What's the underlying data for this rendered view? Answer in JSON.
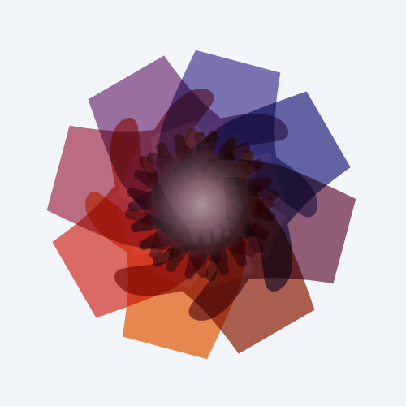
{
  "artwork": {
    "icon": "circle-of-hands-logo",
    "background_color": "#f2f6fa",
    "center_glow_color": "#ffffff",
    "hands": [
      {
        "name": "hand-violet",
        "color": "#5d50a0"
      },
      {
        "name": "hand-indigo",
        "color": "#3c3c8c"
      },
      {
        "name": "hand-plum",
        "color": "#7a3552"
      },
      {
        "name": "hand-rust",
        "color": "#9e341e"
      },
      {
        "name": "hand-orange",
        "color": "#f06c20"
      },
      {
        "name": "hand-red",
        "color": "#e0453c"
      },
      {
        "name": "hand-crimson",
        "color": "#b34860"
      },
      {
        "name": "hand-purple",
        "color": "#884a87"
      }
    ]
  }
}
